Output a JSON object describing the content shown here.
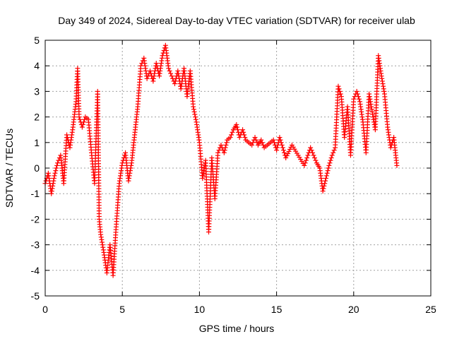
{
  "chart_data": {
    "type": "scatter",
    "title": "Day 349 of 2024, Sidereal Day-to-day VTEC variation (SDTVAR) for receiver ulab",
    "xlabel": "GPS time / hours",
    "ylabel": "SDTVAR / TECUs",
    "xlim": [
      0,
      25
    ],
    "ylim": [
      -5,
      5
    ],
    "x_ticks": [
      "0",
      "5",
      "10",
      "15",
      "20",
      "25"
    ],
    "y_ticks": [
      "-5",
      "-4",
      "-3",
      "-2",
      "-1",
      "0",
      "1",
      "2",
      "3",
      "4",
      "5"
    ],
    "grid": true,
    "marker": "+",
    "series": [
      {
        "name": "SDTVAR",
        "color": "#ff0000",
        "x": [
          0.0,
          0.2,
          0.4,
          0.6,
          0.8,
          1.0,
          1.2,
          1.4,
          1.6,
          1.8,
          2.0,
          2.1,
          2.2,
          2.4,
          2.6,
          2.8,
          3.0,
          3.2,
          3.4,
          3.5,
          3.6,
          3.8,
          4.0,
          4.2,
          4.4,
          4.6,
          4.8,
          5.0,
          5.2,
          5.4,
          5.6,
          5.8,
          6.0,
          6.2,
          6.4,
          6.6,
          6.8,
          7.0,
          7.2,
          7.4,
          7.6,
          7.8,
          8.0,
          8.2,
          8.4,
          8.6,
          8.8,
          9.0,
          9.2,
          9.4,
          9.6,
          9.8,
          10.0,
          10.2,
          10.4,
          10.6,
          10.8,
          11.0,
          11.2,
          11.4,
          11.6,
          11.8,
          12.0,
          12.2,
          12.4,
          12.6,
          12.8,
          13.0,
          13.2,
          13.4,
          13.6,
          13.8,
          14.0,
          14.2,
          14.4,
          14.6,
          14.8,
          15.0,
          15.2,
          15.6,
          16.0,
          16.4,
          16.8,
          17.2,
          17.6,
          17.8,
          18.0,
          18.2,
          18.4,
          18.6,
          18.8,
          19.0,
          19.2,
          19.4,
          19.6,
          19.8,
          20.0,
          20.2,
          20.4,
          20.6,
          20.8,
          21.0,
          21.2,
          21.4,
          21.6,
          21.8,
          22.0,
          22.2,
          22.4,
          22.6,
          22.8
        ],
        "y": [
          -0.6,
          -0.2,
          -1.0,
          -0.3,
          0.2,
          0.5,
          -0.6,
          1.3,
          0.8,
          1.6,
          2.6,
          3.9,
          2.0,
          1.6,
          2.0,
          1.9,
          0.6,
          -0.6,
          3.0,
          -2.0,
          -2.6,
          -3.3,
          -4.1,
          -3.0,
          -4.2,
          -2.3,
          -0.6,
          0.2,
          0.6,
          -0.5,
          0.2,
          1.3,
          2.4,
          4.0,
          4.3,
          3.5,
          3.8,
          3.4,
          4.1,
          3.6,
          4.4,
          4.8,
          3.9,
          3.6,
          3.3,
          3.8,
          3.1,
          3.9,
          2.8,
          3.8,
          2.4,
          1.8,
          1.0,
          -0.4,
          0.3,
          -2.5,
          0.4,
          -1.2,
          0.6,
          0.9,
          0.6,
          1.1,
          1.2,
          1.5,
          1.7,
          1.2,
          1.5,
          1.1,
          1.0,
          0.9,
          1.2,
          0.9,
          1.1,
          0.8,
          0.9,
          1.0,
          1.1,
          0.7,
          1.2,
          0.4,
          0.9,
          0.5,
          0.1,
          0.8,
          0.2,
          0.0,
          -0.9,
          -0.4,
          0.1,
          0.5,
          0.8,
          3.2,
          2.8,
          1.2,
          2.4,
          0.5,
          2.7,
          3.0,
          2.6,
          1.8,
          0.6,
          2.9,
          2.2,
          1.5,
          4.4,
          3.6,
          2.9,
          1.6,
          0.8,
          1.2,
          0.1
        ]
      }
    ]
  }
}
